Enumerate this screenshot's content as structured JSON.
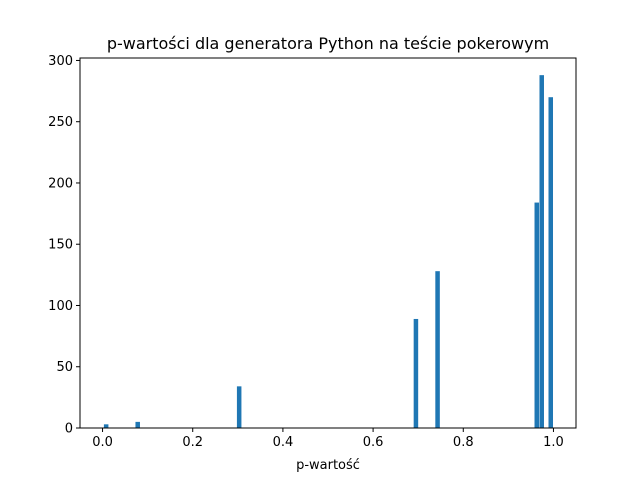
{
  "chart_data": {
    "type": "bar",
    "title": "p-wartości dla generatora Python na teście pokerowym",
    "xlabel": "p-wartość",
    "ylabel": "",
    "xlim": [
      -0.05,
      1.05
    ],
    "ylim": [
      0,
      302
    ],
    "x_ticks": [
      0.0,
      0.2,
      0.4,
      0.6,
      0.8,
      1.0
    ],
    "x_tick_labels": [
      "0.0",
      "0.2",
      "0.4",
      "0.6",
      "0.8",
      "1.0"
    ],
    "y_ticks": [
      0,
      50,
      100,
      150,
      200,
      250,
      300
    ],
    "y_tick_labels": [
      "0",
      "50",
      "100",
      "150",
      "200",
      "250",
      "300"
    ],
    "bin_width": 0.01,
    "bars": [
      {
        "x": 0.008,
        "value": 3
      },
      {
        "x": 0.078,
        "value": 5
      },
      {
        "x": 0.303,
        "value": 34
      },
      {
        "x": 0.695,
        "value": 89
      },
      {
        "x": 0.743,
        "value": 128
      },
      {
        "x": 0.963,
        "value": 184
      },
      {
        "x": 0.974,
        "value": 288
      },
      {
        "x": 0.994,
        "value": 270
      }
    ],
    "grid": false,
    "color": "#1f77b4"
  }
}
